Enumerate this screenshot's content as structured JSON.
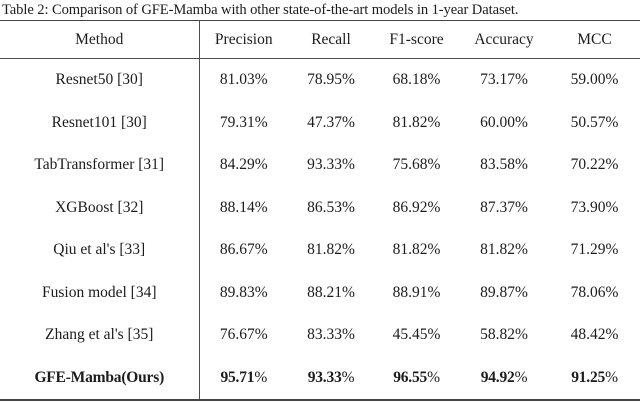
{
  "caption": "Table 2: Comparison of GFE-Mamba with other state-of-the-art models in 1-year Dataset.",
  "table": {
    "method_header": "Method",
    "metric_headers": [
      "Precision",
      "Recall",
      "F1-score",
      "Accuracy",
      "MCC"
    ],
    "rows": [
      {
        "method": "Resnet50 [30]",
        "bold": false,
        "values": [
          "81.03%",
          "78.95%",
          "68.18%",
          "73.17%",
          "59.00%"
        ]
      },
      {
        "method": "Resnet101 [30]",
        "bold": false,
        "values": [
          "79.31%",
          "47.37%",
          "81.82%",
          "60.00%",
          "50.57%"
        ]
      },
      {
        "method": "TabTransformer [31]",
        "bold": false,
        "values": [
          "84.29%",
          "93.33%",
          "75.68%",
          "83.58%",
          "70.22%"
        ]
      },
      {
        "method": "XGBoost [32]",
        "bold": false,
        "values": [
          "88.14%",
          "86.53%",
          "86.92%",
          "87.37%",
          "73.90%"
        ]
      },
      {
        "method": "Qiu et al's [33]",
        "bold": false,
        "values": [
          "86.67%",
          "81.82%",
          "81.82%",
          "81.82%",
          "71.29%"
        ]
      },
      {
        "method": "Fusion model [34]",
        "bold": false,
        "values": [
          "89.83%",
          "88.21%",
          "88.91%",
          "89.87%",
          "78.06%"
        ]
      },
      {
        "method": "Zhang et al's [35]",
        "bold": false,
        "values": [
          "76.67%",
          "83.33%",
          "45.45%",
          "58.82%",
          "48.42%"
        ]
      },
      {
        "method": "GFE-Mamba(Ours)",
        "bold": true,
        "values": [
          "95.71%",
          "93.33%",
          "96.55%",
          "94.92%",
          "91.25%"
        ]
      }
    ]
  },
  "colors": {
    "background": "#ffffff",
    "text": "#1c1c1c",
    "rule": "#4d4d4d"
  }
}
